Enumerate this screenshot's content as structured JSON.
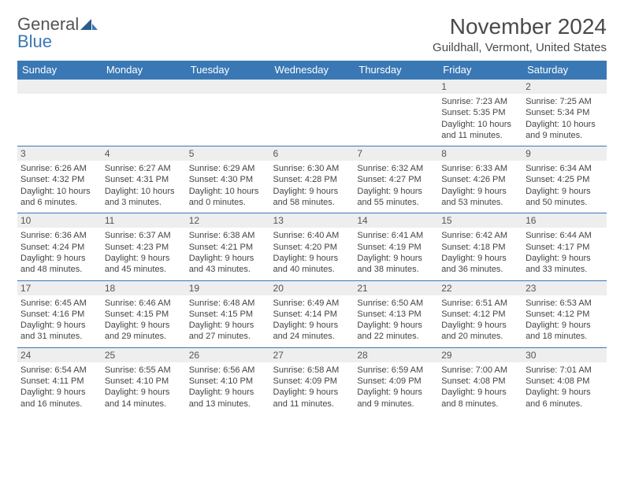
{
  "logo": {
    "word1": "General",
    "word2": "Blue"
  },
  "title": "November 2024",
  "location": "Guildhall, Vermont, United States",
  "colors": {
    "header_bg": "#3a78b5",
    "header_text": "#ffffff",
    "daynum_bg": "#eeeeee",
    "border": "#3a78b5",
    "text": "#444444"
  },
  "font": {
    "title_size": 28,
    "location_size": 15,
    "header_size": 13,
    "daynum_size": 12,
    "cell_size": 11
  },
  "dayNames": [
    "Sunday",
    "Monday",
    "Tuesday",
    "Wednesday",
    "Thursday",
    "Friday",
    "Saturday"
  ],
  "weeks": [
    [
      null,
      null,
      null,
      null,
      null,
      {
        "n": "1",
        "sr": "7:23 AM",
        "ss": "5:35 PM",
        "dl": "10 hours and 11 minutes."
      },
      {
        "n": "2",
        "sr": "7:25 AM",
        "ss": "5:34 PM",
        "dl": "10 hours and 9 minutes."
      }
    ],
    [
      {
        "n": "3",
        "sr": "6:26 AM",
        "ss": "4:32 PM",
        "dl": "10 hours and 6 minutes."
      },
      {
        "n": "4",
        "sr": "6:27 AM",
        "ss": "4:31 PM",
        "dl": "10 hours and 3 minutes."
      },
      {
        "n": "5",
        "sr": "6:29 AM",
        "ss": "4:30 PM",
        "dl": "10 hours and 0 minutes."
      },
      {
        "n": "6",
        "sr": "6:30 AM",
        "ss": "4:28 PM",
        "dl": "9 hours and 58 minutes."
      },
      {
        "n": "7",
        "sr": "6:32 AM",
        "ss": "4:27 PM",
        "dl": "9 hours and 55 minutes."
      },
      {
        "n": "8",
        "sr": "6:33 AM",
        "ss": "4:26 PM",
        "dl": "9 hours and 53 minutes."
      },
      {
        "n": "9",
        "sr": "6:34 AM",
        "ss": "4:25 PM",
        "dl": "9 hours and 50 minutes."
      }
    ],
    [
      {
        "n": "10",
        "sr": "6:36 AM",
        "ss": "4:24 PM",
        "dl": "9 hours and 48 minutes."
      },
      {
        "n": "11",
        "sr": "6:37 AM",
        "ss": "4:23 PM",
        "dl": "9 hours and 45 minutes."
      },
      {
        "n": "12",
        "sr": "6:38 AM",
        "ss": "4:21 PM",
        "dl": "9 hours and 43 minutes."
      },
      {
        "n": "13",
        "sr": "6:40 AM",
        "ss": "4:20 PM",
        "dl": "9 hours and 40 minutes."
      },
      {
        "n": "14",
        "sr": "6:41 AM",
        "ss": "4:19 PM",
        "dl": "9 hours and 38 minutes."
      },
      {
        "n": "15",
        "sr": "6:42 AM",
        "ss": "4:18 PM",
        "dl": "9 hours and 36 minutes."
      },
      {
        "n": "16",
        "sr": "6:44 AM",
        "ss": "4:17 PM",
        "dl": "9 hours and 33 minutes."
      }
    ],
    [
      {
        "n": "17",
        "sr": "6:45 AM",
        "ss": "4:16 PM",
        "dl": "9 hours and 31 minutes."
      },
      {
        "n": "18",
        "sr": "6:46 AM",
        "ss": "4:15 PM",
        "dl": "9 hours and 29 minutes."
      },
      {
        "n": "19",
        "sr": "6:48 AM",
        "ss": "4:15 PM",
        "dl": "9 hours and 27 minutes."
      },
      {
        "n": "20",
        "sr": "6:49 AM",
        "ss": "4:14 PM",
        "dl": "9 hours and 24 minutes."
      },
      {
        "n": "21",
        "sr": "6:50 AM",
        "ss": "4:13 PM",
        "dl": "9 hours and 22 minutes."
      },
      {
        "n": "22",
        "sr": "6:51 AM",
        "ss": "4:12 PM",
        "dl": "9 hours and 20 minutes."
      },
      {
        "n": "23",
        "sr": "6:53 AM",
        "ss": "4:12 PM",
        "dl": "9 hours and 18 minutes."
      }
    ],
    [
      {
        "n": "24",
        "sr": "6:54 AM",
        "ss": "4:11 PM",
        "dl": "9 hours and 16 minutes."
      },
      {
        "n": "25",
        "sr": "6:55 AM",
        "ss": "4:10 PM",
        "dl": "9 hours and 14 minutes."
      },
      {
        "n": "26",
        "sr": "6:56 AM",
        "ss": "4:10 PM",
        "dl": "9 hours and 13 minutes."
      },
      {
        "n": "27",
        "sr": "6:58 AM",
        "ss": "4:09 PM",
        "dl": "9 hours and 11 minutes."
      },
      {
        "n": "28",
        "sr": "6:59 AM",
        "ss": "4:09 PM",
        "dl": "9 hours and 9 minutes."
      },
      {
        "n": "29",
        "sr": "7:00 AM",
        "ss": "4:08 PM",
        "dl": "9 hours and 8 minutes."
      },
      {
        "n": "30",
        "sr": "7:01 AM",
        "ss": "4:08 PM",
        "dl": "9 hours and 6 minutes."
      }
    ]
  ],
  "labels": {
    "sunrise": "Sunrise:",
    "sunset": "Sunset:",
    "daylight": "Daylight:"
  }
}
